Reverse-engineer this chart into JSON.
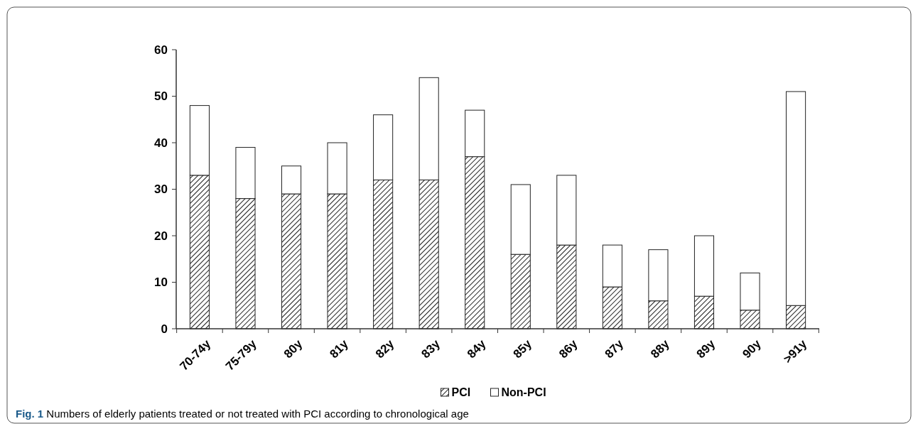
{
  "chart_data": {
    "type": "bar",
    "stacked": true,
    "categories": [
      "70-74y",
      "75-79y",
      "80y",
      "81y",
      "82y",
      "83y",
      "84y",
      "85y",
      "86y",
      "87y",
      "88y",
      "89y",
      "90y",
      ">91y"
    ],
    "series": [
      {
        "name": "PCI",
        "color": "#222222",
        "values": [
          33,
          28,
          29,
          29,
          32,
          32,
          37,
          16,
          18,
          9,
          6,
          7,
          4,
          5
        ]
      },
      {
        "name": "Non-PCI",
        "color": "#ffffff",
        "values": [
          15,
          11,
          6,
          11,
          14,
          22,
          10,
          15,
          15,
          9,
          11,
          13,
          8,
          46
        ]
      }
    ],
    "ylim": [
      0,
      60
    ],
    "yticks": [
      0,
      10,
      20,
      30,
      40,
      50,
      60
    ],
    "grid": false,
    "legend": "bottom",
    "annotations": [
      "Fig. 1 Numbers of elderly patients treated or not treated with PCI according to chronological age"
    ]
  }
}
